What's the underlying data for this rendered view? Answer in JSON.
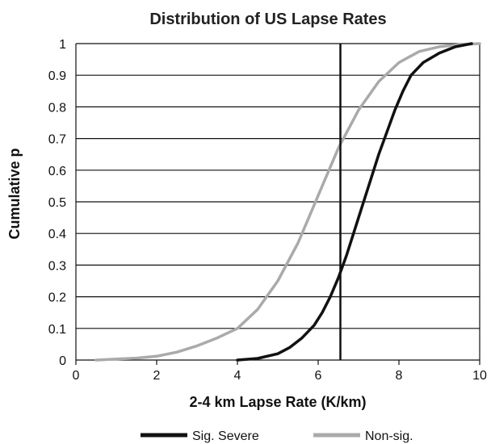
{
  "chart_data": {
    "type": "line",
    "title": "Distribution of US Lapse Rates",
    "xlabel": "2-4 km Lapse Rate (K/km)",
    "ylabel": "Cumulative p",
    "xlim": [
      0,
      10
    ],
    "ylim": [
      0,
      1
    ],
    "x_ticks": [
      "0",
      "2",
      "4",
      "6",
      "8",
      "10"
    ],
    "y_ticks": [
      "0",
      "0.1",
      "0.2",
      "0.3",
      "0.4",
      "0.5",
      "0.6",
      "0.7",
      "0.8",
      "0.9",
      "1"
    ],
    "grid": "horizontal",
    "legend_position": "bottom",
    "reference_line": {
      "x": 6.55
    },
    "series": [
      {
        "name": "Sig. Severe",
        "color": "#111111",
        "x": [
          4.0,
          4.5,
          5.0,
          5.3,
          5.6,
          5.9,
          6.1,
          6.3,
          6.5,
          6.7,
          6.9,
          7.1,
          7.3,
          7.5,
          7.7,
          7.9,
          8.1,
          8.3,
          8.6,
          9.0,
          9.4,
          9.8
        ],
        "y": [
          0.0,
          0.005,
          0.02,
          0.04,
          0.07,
          0.11,
          0.15,
          0.2,
          0.26,
          0.33,
          0.41,
          0.49,
          0.57,
          0.65,
          0.72,
          0.79,
          0.85,
          0.9,
          0.94,
          0.97,
          0.99,
          1.0
        ]
      },
      {
        "name": "Non-sig.",
        "color": "#aaaaaa",
        "x": [
          0.5,
          1.0,
          1.5,
          2.0,
          2.5,
          3.0,
          3.5,
          4.0,
          4.5,
          5.0,
          5.5,
          6.0,
          6.5,
          7.0,
          7.5,
          8.0,
          8.5,
          9.0,
          9.5,
          10.0
        ],
        "y": [
          0.0,
          0.003,
          0.006,
          0.012,
          0.025,
          0.045,
          0.07,
          0.1,
          0.16,
          0.25,
          0.37,
          0.52,
          0.67,
          0.79,
          0.88,
          0.94,
          0.975,
          0.99,
          0.997,
          1.0
        ]
      }
    ]
  }
}
